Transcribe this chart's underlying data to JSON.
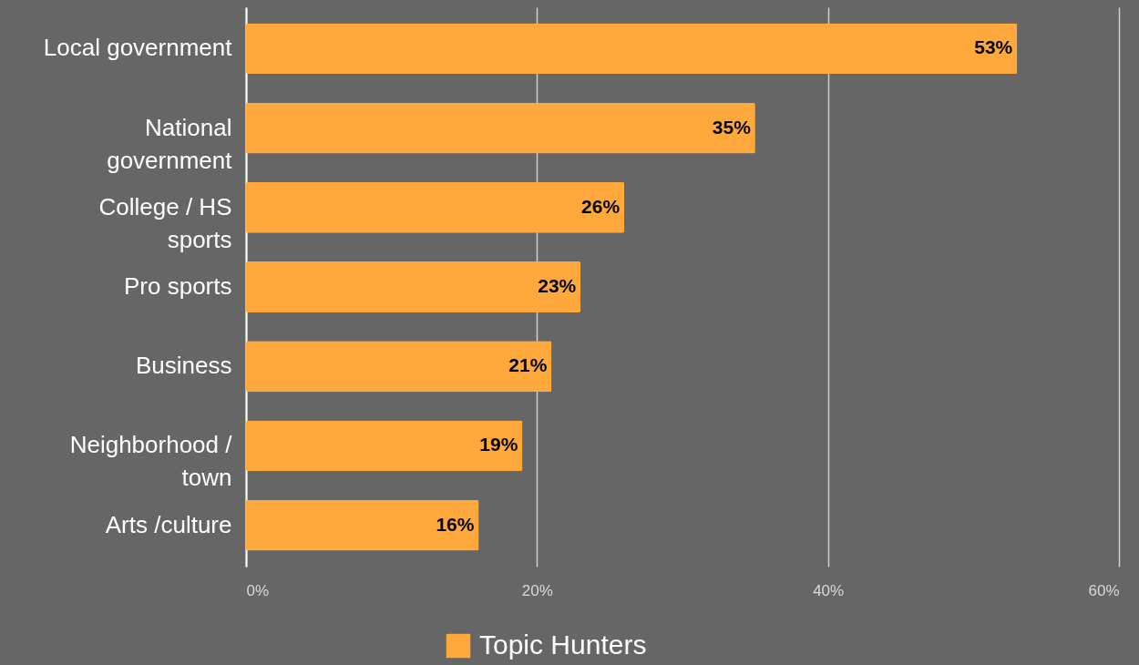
{
  "chart_data": {
    "type": "bar",
    "orientation": "horizontal",
    "categories": [
      "Local government",
      "National government",
      "College / HS sports",
      "Pro sports",
      "Business",
      "Neighborhood / town",
      "Arts /culture"
    ],
    "series": [
      {
        "name": "Topic Hunters",
        "color": "#ffa83c",
        "values": [
          53,
          35,
          26,
          23,
          21,
          19,
          16
        ],
        "value_labels": [
          "53%",
          "35%",
          "26%",
          "23%",
          "21%",
          "19%",
          "16%"
        ]
      }
    ],
    "xlim": [
      0,
      60
    ],
    "xticks": [
      {
        "value": 0,
        "label": "0%"
      },
      {
        "value": 20,
        "label": "20%"
      },
      {
        "value": 40,
        "label": "40%"
      },
      {
        "value": 60,
        "label": "60%"
      }
    ],
    "grid": "x",
    "legend": "bottom"
  }
}
